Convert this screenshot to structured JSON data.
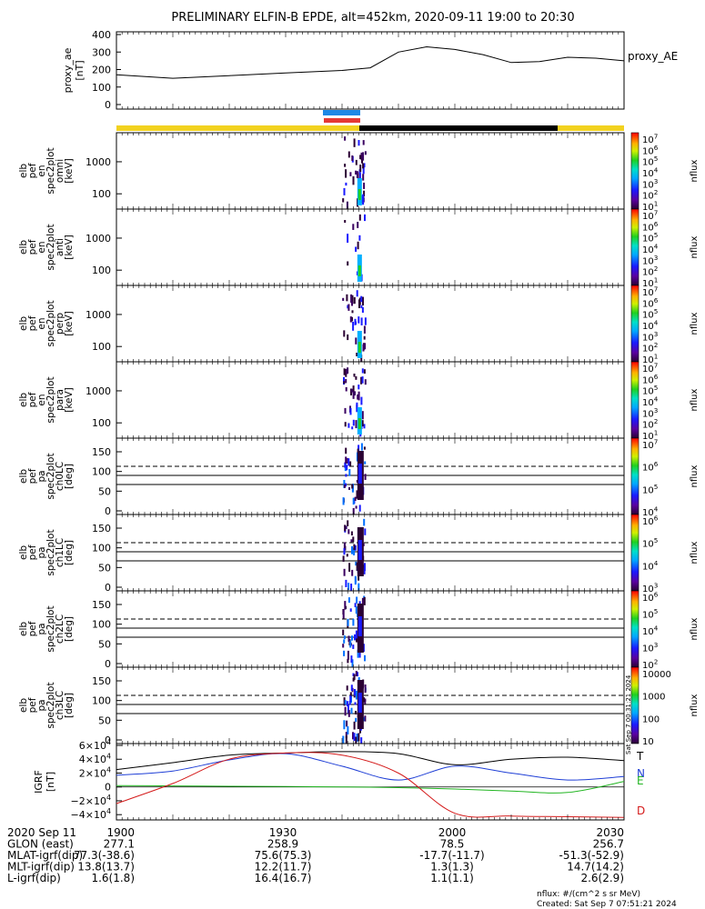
{
  "title": "PRELIMINARY ELFIN-B EPDE, alt=452km, 2020-09-11 19:00 to 20:30",
  "colors": {
    "yellow_bar": "#f2d21f",
    "black_bar": "#000000",
    "blue_marker": "#1e88e5",
    "red_marker": "#e53935",
    "line_N": "#1f3fd6",
    "line_E": "#21b521",
    "line_D": "#d41a1a",
    "line_T": "#000000"
  },
  "panels": [
    {
      "id": "proxy-ae",
      "label": [
        "proxy_ae",
        "[nT]"
      ],
      "right_label": "proxy_AE",
      "ticks": [
        "400",
        "300",
        "200",
        "100",
        "0"
      ]
    },
    {
      "id": "omni",
      "label": [
        "elb",
        "pef",
        "en",
        "spec2plot",
        "omni",
        "[keV]"
      ],
      "ticks": [
        "1000",
        "100"
      ],
      "cb_ticks": [
        "10^7",
        "10^6",
        "10^5",
        "10^4",
        "10^3",
        "10^2",
        "10^1"
      ],
      "cb_label": "nflux"
    },
    {
      "id": "anti",
      "label": [
        "elb",
        "pef",
        "en",
        "spec2plot",
        "anti",
        "[keV]"
      ],
      "ticks": [
        "1000",
        "100"
      ],
      "cb_ticks": [
        "10^7",
        "10^6",
        "10^5",
        "10^4",
        "10^3",
        "10^2",
        "10^1"
      ],
      "cb_label": "nflux"
    },
    {
      "id": "perp",
      "label": [
        "elb",
        "pef",
        "en",
        "spec2plot",
        "perp",
        "[keV]"
      ],
      "ticks": [
        "1000",
        "100"
      ],
      "cb_ticks": [
        "10^7",
        "10^6",
        "10^5",
        "10^4",
        "10^3",
        "10^2",
        "10^1"
      ],
      "cb_label": "nflux"
    },
    {
      "id": "para",
      "label": [
        "elb",
        "pef",
        "en",
        "spec2plot",
        "para",
        "[keV]"
      ],
      "ticks": [
        "1000",
        "100"
      ],
      "cb_ticks": [
        "10^7",
        "10^6",
        "10^5",
        "10^4",
        "10^3",
        "10^2",
        "10^1"
      ],
      "cb_label": "nflux"
    },
    {
      "id": "ch0",
      "label": [
        "elb",
        "pef",
        "pa",
        "spec2plot",
        "ch0LC",
        "[deg]"
      ],
      "ticks": [
        "150",
        "100",
        "50",
        "0"
      ],
      "cb_ticks": [
        "10^7",
        "10^6",
        "10^5",
        "10^4"
      ],
      "cb_label": "nflux"
    },
    {
      "id": "ch1",
      "label": [
        "elb",
        "pef",
        "pa",
        "spec2plot",
        "ch1LC",
        "[deg]"
      ],
      "ticks": [
        "150",
        "100",
        "50",
        "0"
      ],
      "cb_ticks": [
        "10^6",
        "10^5",
        "10^4",
        "10^3"
      ],
      "cb_label": "nflux"
    },
    {
      "id": "ch2",
      "label": [
        "elb",
        "pef",
        "pa",
        "spec2plot",
        "ch2LC",
        "[deg]"
      ],
      "ticks": [
        "150",
        "100",
        "50",
        "0"
      ],
      "cb_ticks": [
        "10^6",
        "10^5",
        "10^4",
        "10^3",
        "10^2"
      ],
      "cb_label": "nflux"
    },
    {
      "id": "ch3",
      "label": [
        "elb",
        "pef",
        "pa",
        "spec2plot",
        "ch3LC",
        "[deg]"
      ],
      "ticks": [
        "150",
        "100",
        "50",
        "0"
      ],
      "cb_ticks": [
        "10000",
        "1000",
        "100",
        "10"
      ],
      "cb_label": "nflux"
    },
    {
      "id": "igrf",
      "label": [
        "IGRF",
        "[nT]"
      ],
      "ticks": [
        "6×10^4",
        "4×10^4",
        "2×10^4",
        "0",
        "−2×10^4",
        "−4×10^4"
      ],
      "legend": [
        "T",
        "N",
        "E",
        "D"
      ]
    }
  ],
  "stamp": "Sat Sep  7 00:31:21 2024",
  "footer": {
    "rows": [
      [
        "2020 Sep 11",
        "1900",
        "1930",
        "2000",
        "2030"
      ],
      [
        "GLON (east)",
        "277.1",
        "258.9",
        "78.5",
        "256.7"
      ],
      [
        "MLAT-igrf(dip)",
        "77.3(-38.6)",
        "75.6(75.3)",
        "-17.7(-11.7)",
        "-51.3(-52.9)"
      ],
      [
        "MLT-igrf(dip)",
        "13.8(13.7)",
        "12.2(11.7)",
        "1.3(1.3)",
        "14.7(14.2)"
      ],
      [
        "L-igrf(dip)",
        "1.6(1.8)",
        "16.4(16.7)",
        "1.1(1.1)",
        "2.6(2.9)"
      ]
    ],
    "note1": "nflux: #/(cm^2 s sr MeV)",
    "note2": "Created: Sat Sep  7 07:51:21 2024"
  },
  "chart_data": [
    {
      "type": "line",
      "title": "proxy_AE",
      "ylabel": "proxy_ae [nT]",
      "ylim": [
        0,
        400
      ],
      "x": [
        "19:00",
        "19:10",
        "19:20",
        "19:30",
        "19:40",
        "19:45",
        "19:50",
        "19:55",
        "20:00",
        "20:05",
        "20:10",
        "20:15",
        "20:20",
        "20:25",
        "20:30"
      ],
      "series": [
        {
          "name": "proxy_AE",
          "values": [
            170,
            150,
            165,
            180,
            195,
            210,
            300,
            330,
            315,
            285,
            240,
            245,
            270,
            265,
            250
          ]
        }
      ]
    },
    {
      "type": "heatmap",
      "title": "elb pef en spec2plot omni",
      "ylabel": "[keV]",
      "yscale": "log",
      "ylim": [
        50,
        7000
      ],
      "active_window": [
        "19:41",
        "19:45"
      ],
      "colorbar": {
        "scale": "log",
        "range": [
          10,
          10000000
        ],
        "label": "nflux"
      }
    },
    {
      "type": "heatmap",
      "title": "elb pef en spec2plot anti",
      "ylabel": "[keV]",
      "yscale": "log",
      "ylim": [
        50,
        7000
      ],
      "active_window": [
        "19:41",
        "19:45"
      ],
      "colorbar": {
        "scale": "log",
        "range": [
          10,
          10000000
        ],
        "label": "nflux"
      }
    },
    {
      "type": "heatmap",
      "title": "elb pef en spec2plot perp",
      "ylabel": "[keV]",
      "yscale": "log",
      "ylim": [
        50,
        7000
      ],
      "active_window": [
        "19:41",
        "19:45"
      ],
      "colorbar": {
        "scale": "log",
        "range": [
          10,
          10000000
        ],
        "label": "nflux"
      }
    },
    {
      "type": "heatmap",
      "title": "elb pef en spec2plot para",
      "ylabel": "[keV]",
      "yscale": "log",
      "ylim": [
        50,
        7000
      ],
      "active_window": [
        "19:41",
        "19:45"
      ],
      "colorbar": {
        "scale": "log",
        "range": [
          10,
          10000000
        ],
        "label": "nflux"
      }
    },
    {
      "type": "heatmap",
      "title": "elb pef pa spec2plot ch0LC",
      "ylabel": "[deg]",
      "ylim": [
        0,
        180
      ],
      "active_window": [
        "19:41",
        "19:45"
      ],
      "reference_lines_deg": [
        113,
        90,
        67
      ],
      "colorbar": {
        "scale": "log",
        "range": [
          1000,
          10000000
        ],
        "label": "nflux"
      }
    },
    {
      "type": "heatmap",
      "title": "elb pef pa spec2plot ch1LC",
      "ylabel": "[deg]",
      "ylim": [
        0,
        180
      ],
      "active_window": [
        "19:41",
        "19:45"
      ],
      "reference_lines_deg": [
        113,
        90,
        67
      ],
      "colorbar": {
        "scale": "log",
        "range": [
          100,
          1000000
        ],
        "label": "nflux"
      }
    },
    {
      "type": "heatmap",
      "title": "elb pef pa spec2plot ch2LC",
      "ylabel": "[deg]",
      "ylim": [
        0,
        180
      ],
      "active_window": [
        "19:41",
        "19:45"
      ],
      "reference_lines_deg": [
        113,
        90,
        67
      ],
      "colorbar": {
        "scale": "log",
        "range": [
          100,
          1000000
        ],
        "label": "nflux"
      }
    },
    {
      "type": "heatmap",
      "title": "elb pef pa spec2plot ch3LC",
      "ylabel": "[deg]",
      "ylim": [
        0,
        180
      ],
      "active_window": [
        "19:41",
        "19:45"
      ],
      "reference_lines_deg": [
        113,
        90,
        67
      ],
      "colorbar": {
        "scale": "log",
        "range": [
          10,
          10000
        ],
        "label": "nflux"
      }
    },
    {
      "type": "line",
      "title": "IGRF",
      "ylabel": "IGRF [nT]",
      "ylim": [
        -45000,
        60000
      ],
      "x": [
        "19:00",
        "19:10",
        "19:20",
        "19:30",
        "19:40",
        "19:50",
        "20:00",
        "20:10",
        "20:20",
        "20:30"
      ],
      "series": [
        {
          "name": "T",
          "values": [
            25000,
            35000,
            46000,
            49000,
            51000,
            48000,
            32000,
            40000,
            43000,
            38000
          ]
        },
        {
          "name": "N",
          "values": [
            17000,
            23000,
            39000,
            48000,
            30000,
            10000,
            30000,
            20000,
            10000,
            15000
          ]
        },
        {
          "name": "E",
          "values": [
            2000,
            1500,
            1000,
            500,
            0,
            -1000,
            -3000,
            -6000,
            -8000,
            8000
          ]
        },
        {
          "name": "D",
          "values": [
            -24000,
            5000,
            40000,
            49000,
            46000,
            20000,
            -38000,
            -42000,
            -43000,
            -44000
          ]
        }
      ]
    }
  ]
}
